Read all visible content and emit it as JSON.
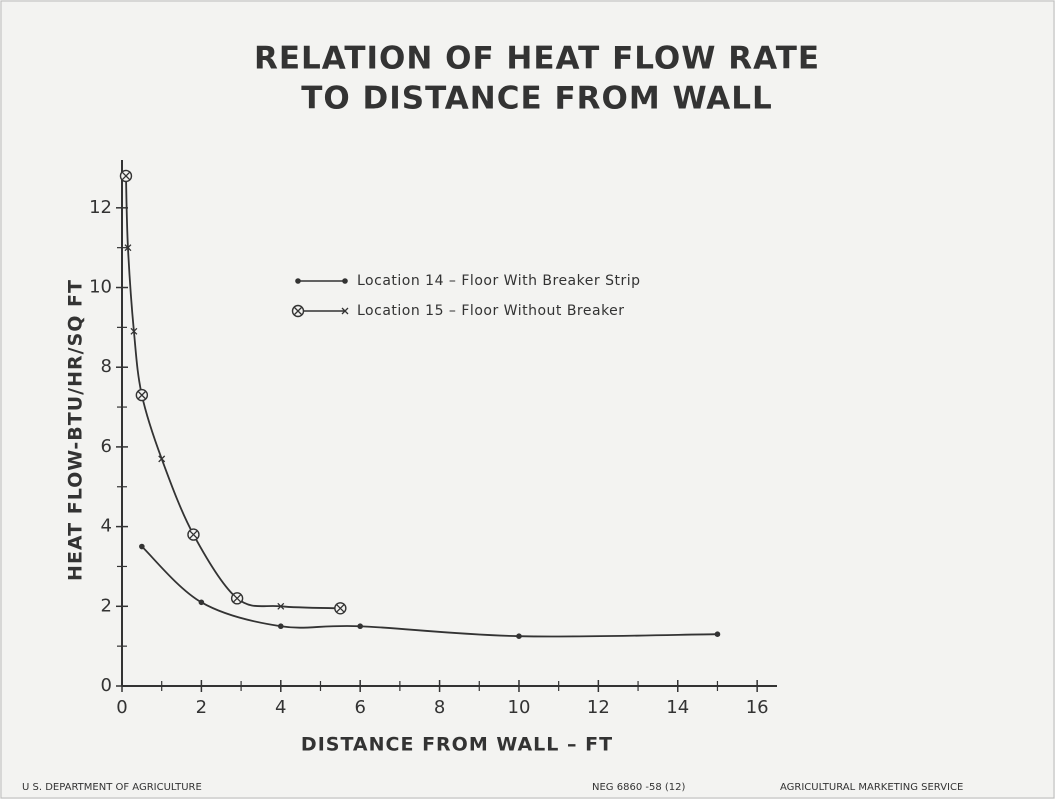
{
  "chart_data": {
    "type": "line",
    "title": [
      "RELATION OF HEAT FLOW RATE",
      "TO DISTANCE FROM WALL"
    ],
    "x_label": "DISTANCE FROM WALL – FT",
    "y_label": "HEAT FLOW-BTU/HR/SQ FT",
    "xlim": [
      0,
      16.5
    ],
    "ylim": [
      0,
      13.2
    ],
    "xticks": [
      0,
      2,
      4,
      6,
      8,
      10,
      12,
      14,
      16
    ],
    "yticks": [
      0,
      2,
      4,
      6,
      8,
      10,
      12
    ],
    "series": [
      {
        "name": "Location 14 – Floor With Breaker Strip",
        "color": "#333333",
        "x": [
          0.5,
          2,
          4,
          6,
          10,
          15
        ],
        "values": [
          3.5,
          2.1,
          1.5,
          1.5,
          1.25,
          1.3
        ],
        "markers": [
          "dot",
          "dot",
          "dot",
          "dot",
          "dot",
          "dot"
        ]
      },
      {
        "name": "Location 15 – Floor Without Breaker",
        "color": "#333333",
        "x": [
          0.1,
          0.15,
          0.3,
          0.5,
          1,
          1.8,
          2.9,
          4,
          5.5
        ],
        "values": [
          12.8,
          11,
          8.9,
          7.3,
          5.7,
          3.8,
          2.2,
          2.0,
          1.95
        ],
        "markers": [
          "circle-x",
          "x",
          "x",
          "circle-x",
          "x",
          "circle-x",
          "circle-x",
          "x",
          "circle-x"
        ]
      }
    ],
    "footer": [
      "U S. DEPARTMENT OF AGRICULTURE",
      "NEG 6860 -58 (12)",
      "AGRICULTURAL MARKETING SERVICE"
    ]
  }
}
